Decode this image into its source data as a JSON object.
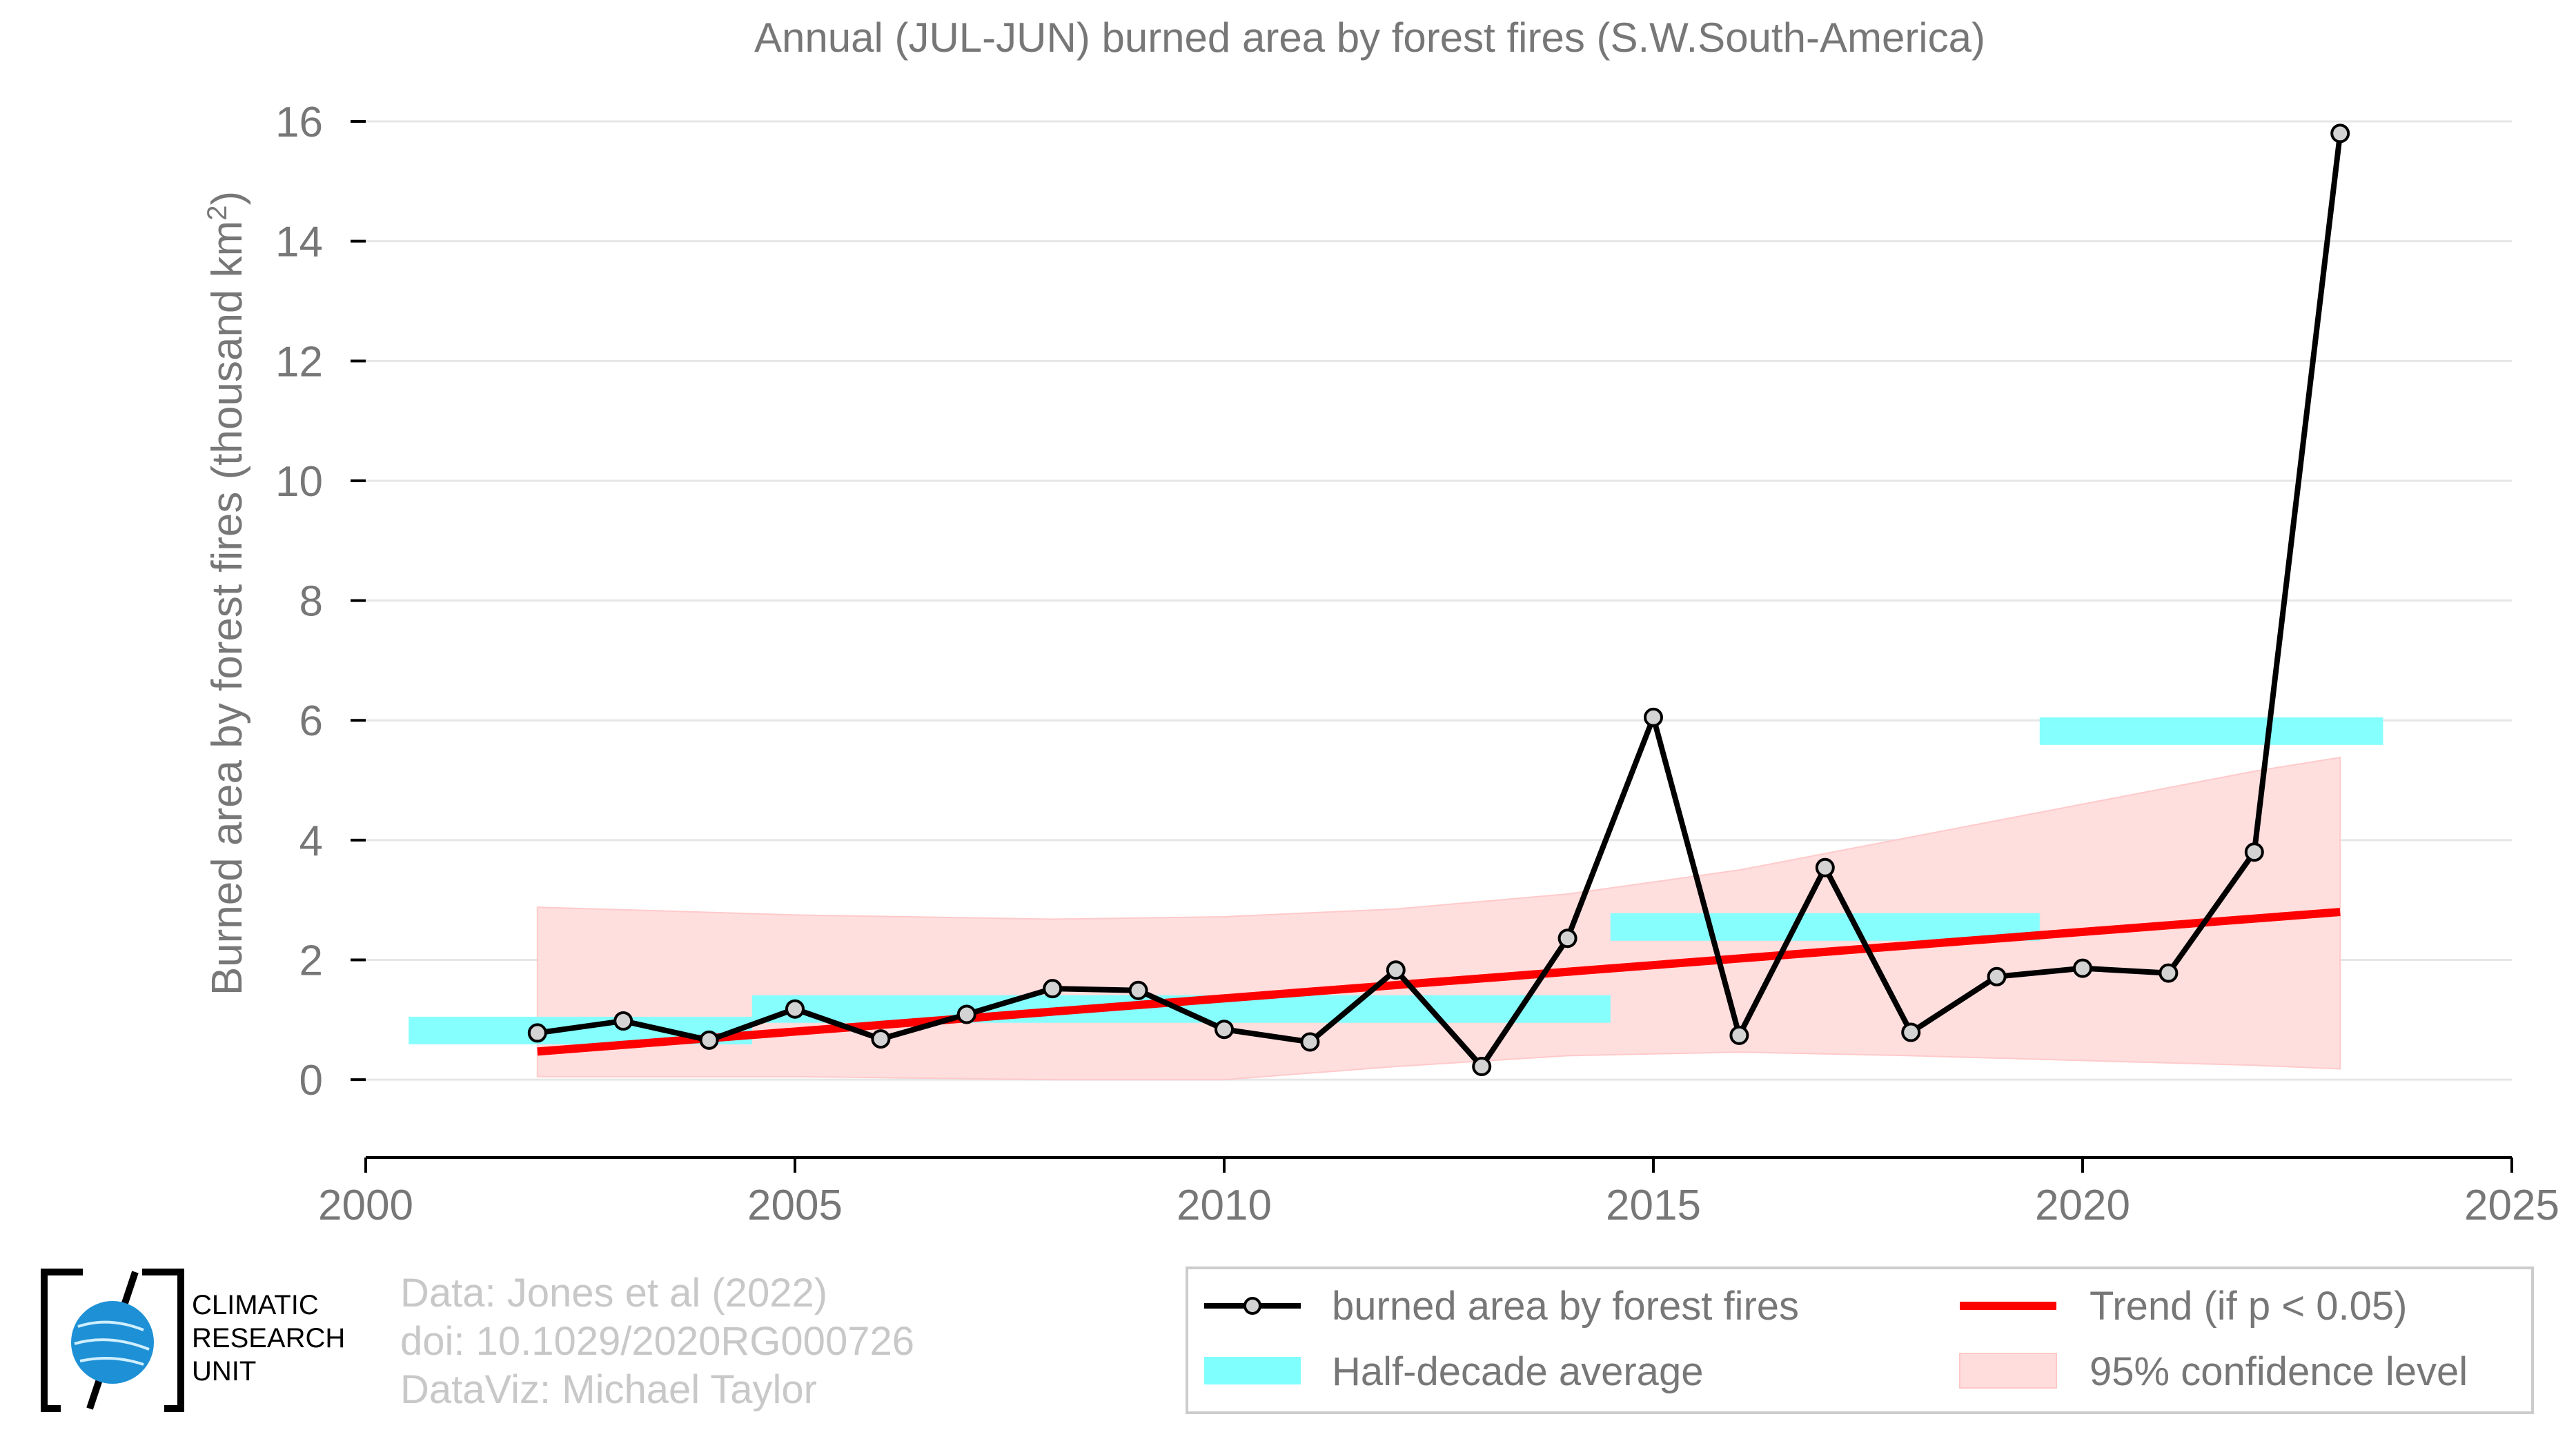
{
  "chart_data": {
    "type": "line",
    "title": "Annual (JUL-JUN) burned area by forest fires (S.W.South-America)",
    "ylabel_main": "Burned area by forest fires (thousand km",
    "ylabel_sup": "2",
    "ylabel_end": ")",
    "xlim": [
      2000,
      2025
    ],
    "ylim": [
      -1.3,
      16.3
    ],
    "xticks": [
      2000,
      2005,
      2010,
      2015,
      2020,
      2025
    ],
    "yticks": [
      0,
      2,
      4,
      6,
      8,
      10,
      12,
      14,
      16
    ],
    "grid": true,
    "series": [
      {
        "name": "burned area by forest fires",
        "color": "#000000",
        "x": [
          2002,
          2003,
          2004,
          2005,
          2006,
          2007,
          2008,
          2009,
          2010,
          2011,
          2012,
          2013,
          2014,
          2015,
          2016,
          2017,
          2018,
          2019,
          2020,
          2021,
          2022,
          2023
        ],
        "y": [
          0.78,
          0.98,
          0.66,
          1.18,
          0.68,
          1.09,
          1.52,
          1.49,
          0.84,
          0.63,
          1.83,
          0.22,
          2.36,
          6.05,
          0.74,
          3.54,
          0.79,
          1.72,
          1.86,
          1.78,
          3.8,
          15.8
        ]
      }
    ],
    "half_decade_average": {
      "name": "Half-decade average",
      "color": "#80ffff",
      "bars": [
        {
          "x0": 2000.5,
          "x1": 2004.5,
          "y": 0.82
        },
        {
          "x0": 2004.5,
          "x1": 2014.5,
          "y": 1.18
        },
        {
          "x0": 2014.5,
          "x1": 2019.5,
          "y": 2.55
        },
        {
          "x0": 2019.5,
          "x1": 2023.5,
          "y": 5.82
        }
      ]
    },
    "trend": {
      "name": "Trend (if p < 0.05)",
      "color": "#ff0000",
      "x0": 2002,
      "y0": 0.47,
      "x1": 2023,
      "y1": 2.8
    },
    "confidence": {
      "name": "95% confidence level",
      "color": "#ffdddd",
      "x": [
        2002,
        2005,
        2008,
        2010,
        2012,
        2014,
        2016,
        2018,
        2020,
        2022,
        2023
      ],
      "upper": [
        2.88,
        2.75,
        2.68,
        2.72,
        2.85,
        3.1,
        3.5,
        4.05,
        4.6,
        5.15,
        5.38
      ],
      "lower": [
        0.05,
        0.05,
        0.0,
        0.0,
        0.22,
        0.4,
        0.46,
        0.4,
        0.32,
        0.24,
        0.18
      ]
    },
    "legend": {
      "placement": "bottom-right",
      "entries": [
        "burned area by forest fires",
        "Trend (if p < 0.05)",
        "Half-decade average",
        "95% confidence level"
      ]
    }
  },
  "credits": {
    "line1": "Data: Jones et al (2022)",
    "line2": "doi: 10.1029/2020RG000726",
    "line3": "DataViz: Michael Taylor"
  },
  "logo": {
    "line1": "CLIMATIC",
    "line2": "RESEARCH",
    "line3": "UNIT"
  }
}
